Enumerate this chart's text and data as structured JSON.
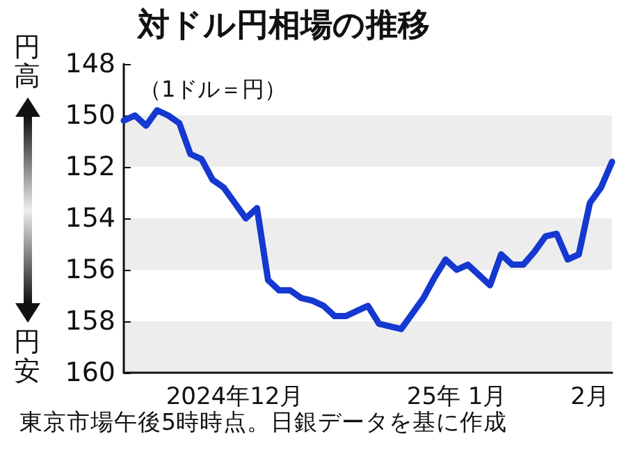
{
  "chart_data": {
    "type": "line",
    "title": "対ドル円相場の推移",
    "subtitle": "（1ドル＝円）",
    "annotations": [
      "円高",
      "円安",
      "東京市場午後5時時点。日銀データを基に作成"
    ],
    "categories": [
      null,
      null,
      null,
      null,
      null,
      null,
      null,
      null,
      null,
      null,
      "2024年12月",
      null,
      null,
      null,
      null,
      null,
      null,
      null,
      null,
      null,
      null,
      null,
      null,
      null,
      null,
      null,
      null,
      null,
      null,
      null,
      "25年 1月",
      null,
      null,
      null,
      null,
      null,
      null,
      null,
      null,
      null,
      null,
      null,
      "2月",
      null,
      null
    ],
    "series": [
      {
        "color": "#1538d0",
        "values": [
          150.2,
          150.0,
          150.4,
          149.8,
          150.0,
          150.3,
          151.5,
          151.7,
          152.5,
          152.8,
          153.4,
          154.0,
          153.6,
          156.4,
          156.8,
          156.8,
          157.1,
          157.2,
          157.4,
          157.8,
          157.8,
          157.6,
          157.4,
          158.1,
          158.2,
          158.3,
          157.7,
          157.1,
          156.3,
          155.6,
          156.0,
          155.8,
          156.2,
          156.6,
          155.4,
          155.8,
          155.8,
          155.3,
          154.7,
          154.6,
          155.6,
          155.4,
          153.4,
          152.8,
          151.8
        ]
      }
    ],
    "ylim": [
      160,
      148
    ],
    "yticks": [
      148,
      150,
      152,
      154,
      156,
      158,
      160
    ],
    "bands": [
      {
        "axis": "y",
        "from": 150,
        "to": 152,
        "color": "#ededed"
      },
      {
        "axis": "y",
        "from": 154,
        "to": 156,
        "color": "#ededed"
      },
      {
        "axis": "y",
        "from": 158,
        "to": 160,
        "color": "#ededed"
      }
    ],
    "marker": "none",
    "line_style": "solid",
    "grid": false
  }
}
